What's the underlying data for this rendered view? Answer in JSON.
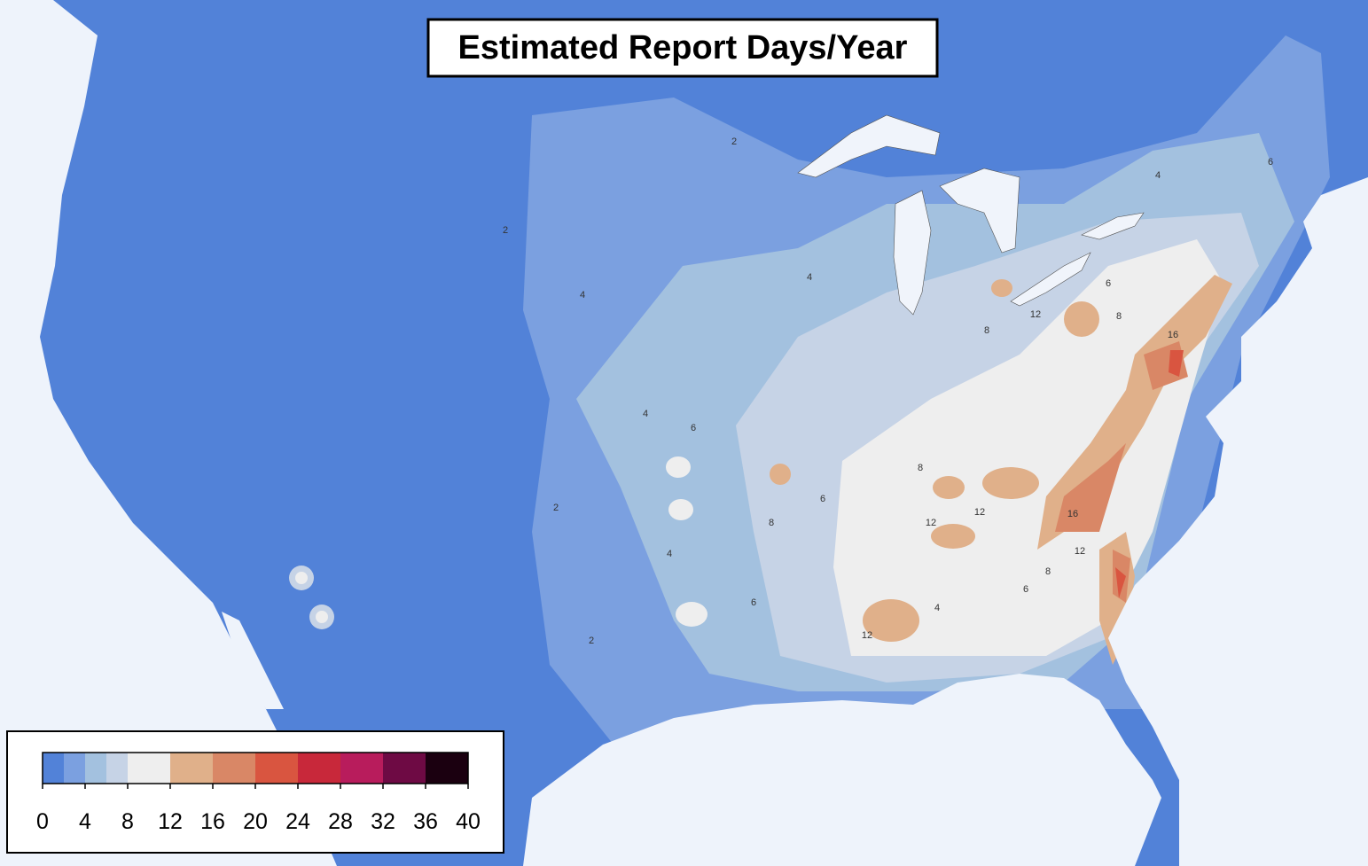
{
  "chart_data": {
    "type": "choropleth-map",
    "title": "Estimated Report Days/Year",
    "land_color": "#5282d8",
    "ocean_color": "#eef3fb",
    "lake_color": "#f0f4fb",
    "colorbar": {
      "boundaries": [
        0,
        2,
        4,
        6,
        8,
        12,
        16,
        20,
        24,
        28,
        32,
        36,
        40
      ],
      "colors": [
        "#5282d8",
        "#7ba0e0",
        "#a3c1df",
        "#c6d3e6",
        "#eeeeee",
        "#e0b08a",
        "#d98766",
        "#d95540",
        "#c8283a",
        "#b81c5c",
        "#6e0a44",
        "#1b0010"
      ],
      "lim": [
        0,
        40
      ],
      "ticks": [
        0,
        4,
        8,
        12,
        16,
        20,
        24,
        28,
        32,
        36,
        40
      ]
    },
    "contour_labels": [
      2,
      4,
      4,
      6,
      8,
      6,
      4,
      2,
      2,
      6,
      12,
      8,
      12,
      12,
      16,
      12,
      8,
      6,
      4,
      12,
      8,
      6,
      8,
      16,
      6,
      4,
      2,
      4
    ]
  }
}
